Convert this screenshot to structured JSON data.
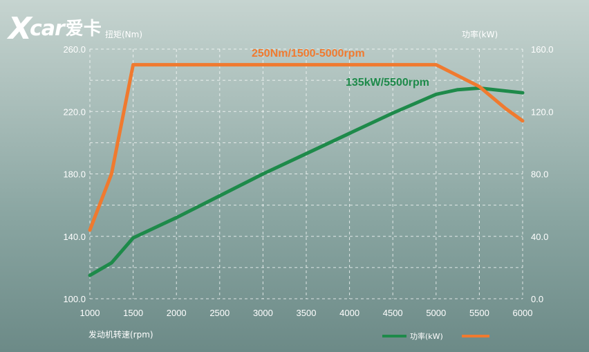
{
  "logo": {
    "mark_x": "X",
    "mark_car": "car",
    "mark_cn": "爱卡"
  },
  "chart_data": {
    "type": "line",
    "title": "",
    "xlabel": "发动机转速(rpm)",
    "ylabel_left": "扭矩(Nm)",
    "ylabel_right": "功率(kW)",
    "xlim": [
      1000,
      6000
    ],
    "ylim_left": [
      100,
      260
    ],
    "ylim_right": [
      0,
      160
    ],
    "x_ticks": [
      "1000",
      "1500",
      "2000",
      "2500",
      "3000",
      "3500",
      "4000",
      "4500",
      "5000",
      "5500",
      "6000"
    ],
    "y_left_ticks": [
      "100.0",
      "140.0",
      "180.0",
      "220.0",
      "260.0"
    ],
    "y_right_ticks": [
      "0.0",
      "40.0",
      "80.0",
      "120.0",
      "160.0"
    ],
    "grid": true,
    "legend_position": "bottom-right",
    "annotations": {
      "torque": "250Nm/1500-5000rpm",
      "power": "135kW/5500rpm"
    },
    "series": [
      {
        "name": "功率(kW)",
        "axis": "right",
        "color": "#1e8a4a",
        "x": [
          1000,
          1250,
          1500,
          2000,
          2500,
          3000,
          3500,
          4000,
          4500,
          5000,
          5250,
          5500,
          6000
        ],
        "values": [
          15,
          23,
          39,
          52,
          66,
          80,
          93,
          106,
          119,
          131,
          134,
          135,
          132
        ]
      },
      {
        "name": "",
        "axis": "left",
        "color": "#f07a2f",
        "x": [
          1000,
          1250,
          1500,
          2000,
          3000,
          4000,
          5000,
          5500,
          5800,
          6000
        ],
        "values": [
          144,
          180,
          250,
          250,
          250,
          250,
          250,
          236,
          222,
          214
        ]
      }
    ]
  }
}
